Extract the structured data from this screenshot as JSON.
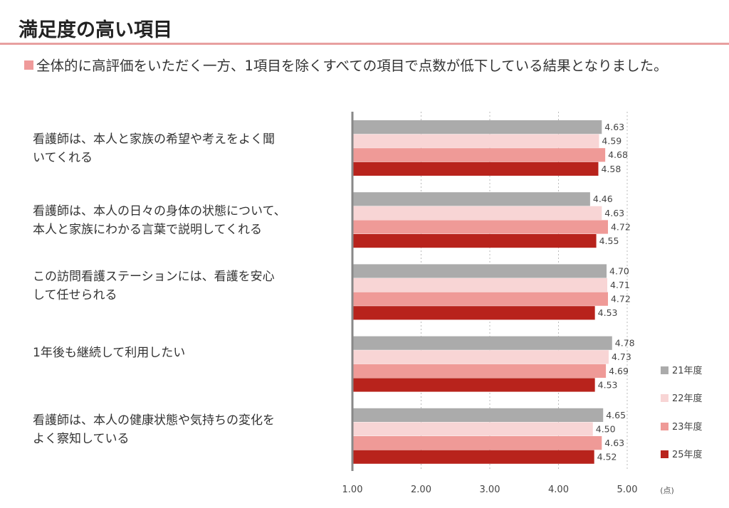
{
  "page": {
    "title": "満足度の高い項目",
    "subtitle": "全体的に高評価をいただく一方、1項目を除くすべての項目で点数が低下している結果となりました。"
  },
  "chart_data": {
    "type": "bar",
    "orientation": "horizontal",
    "categories": [
      "看護師は、本人と家族の希望や考えをよく聞いてくれる",
      "看護師は、本人の日々の身体の状態について、本人と家族にわかる言葉で説明してくれる",
      "この訪問看護ステーションには、看護を安心して任せられる",
      "1年後も継続して利用したい",
      "看護師は、本人の健康状態や気持ちの変化をよく察知している"
    ],
    "series": [
      {
        "name": "21年度",
        "color": "#ababab",
        "values": [
          4.63,
          4.46,
          4.7,
          4.78,
          4.65
        ],
        "labels": [
          "4.63",
          "4.46",
          "4.70",
          "4.78",
          "4.65"
        ]
      },
      {
        "name": "22年度",
        "color": "#f8d5d5",
        "values": [
          4.59,
          4.63,
          4.71,
          4.73,
          4.5
        ],
        "labels": [
          "4.59",
          "4.63",
          "4.71",
          "4.73",
          "4.50"
        ]
      },
      {
        "name": "23年度",
        "color": "#ef9a97",
        "values": [
          4.68,
          4.72,
          4.72,
          4.69,
          4.63
        ],
        "labels": [
          "4.68",
          "4.72",
          "4.72",
          "4.69",
          "4.63"
        ]
      },
      {
        "name": "25年度",
        "color": "#b8231c",
        "values": [
          4.58,
          4.55,
          4.53,
          4.53,
          4.52
        ],
        "labels": [
          "4.58",
          "4.55",
          "4.53",
          "4.53",
          "4.52"
        ]
      }
    ],
    "xlim": [
      1,
      5
    ],
    "xticks": [
      "1.00",
      "2.00",
      "3.00",
      "4.00",
      "5.00"
    ],
    "xunit": "(点)",
    "grid": true,
    "legend": "right"
  }
}
